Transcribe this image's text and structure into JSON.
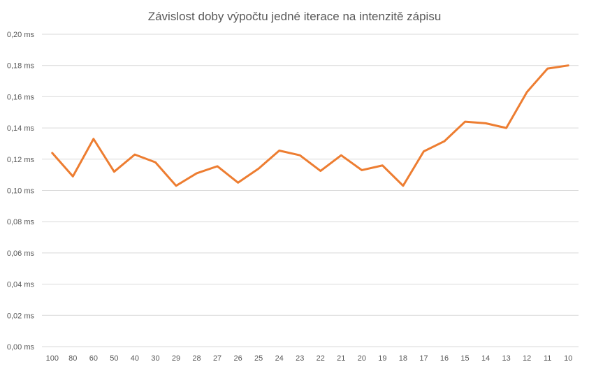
{
  "chart_data": {
    "type": "line",
    "title": "Závislost doby výpočtu jedné iterace na intenzitě zápisu",
    "xlabel": "",
    "ylabel": "",
    "categories": [
      "100",
      "80",
      "60",
      "50",
      "40",
      "30",
      "29",
      "28",
      "27",
      "26",
      "25",
      "24",
      "23",
      "22",
      "21",
      "20",
      "19",
      "18",
      "17",
      "16",
      "15",
      "14",
      "13",
      "12",
      "11",
      "10"
    ],
    "y_ticks": [
      "0,00 ms",
      "0,02 ms",
      "0,04 ms",
      "0,06 ms",
      "0,08 ms",
      "0,10 ms",
      "0,12 ms",
      "0,14 ms",
      "0,16 ms",
      "0,18 ms",
      "0,20 ms"
    ],
    "ylim": [
      0,
      0.2
    ],
    "grid": true,
    "legend": "none",
    "series": [
      {
        "color": "#ed7d31",
        "values": [
          0.124,
          0.109,
          0.133,
          0.112,
          0.123,
          0.118,
          0.103,
          0.111,
          0.1155,
          0.105,
          0.114,
          0.1255,
          0.1225,
          0.1125,
          0.1225,
          0.113,
          0.116,
          0.103,
          0.125,
          0.1315,
          0.144,
          0.143,
          0.14,
          0.163,
          0.178,
          0.18
        ]
      }
    ]
  }
}
